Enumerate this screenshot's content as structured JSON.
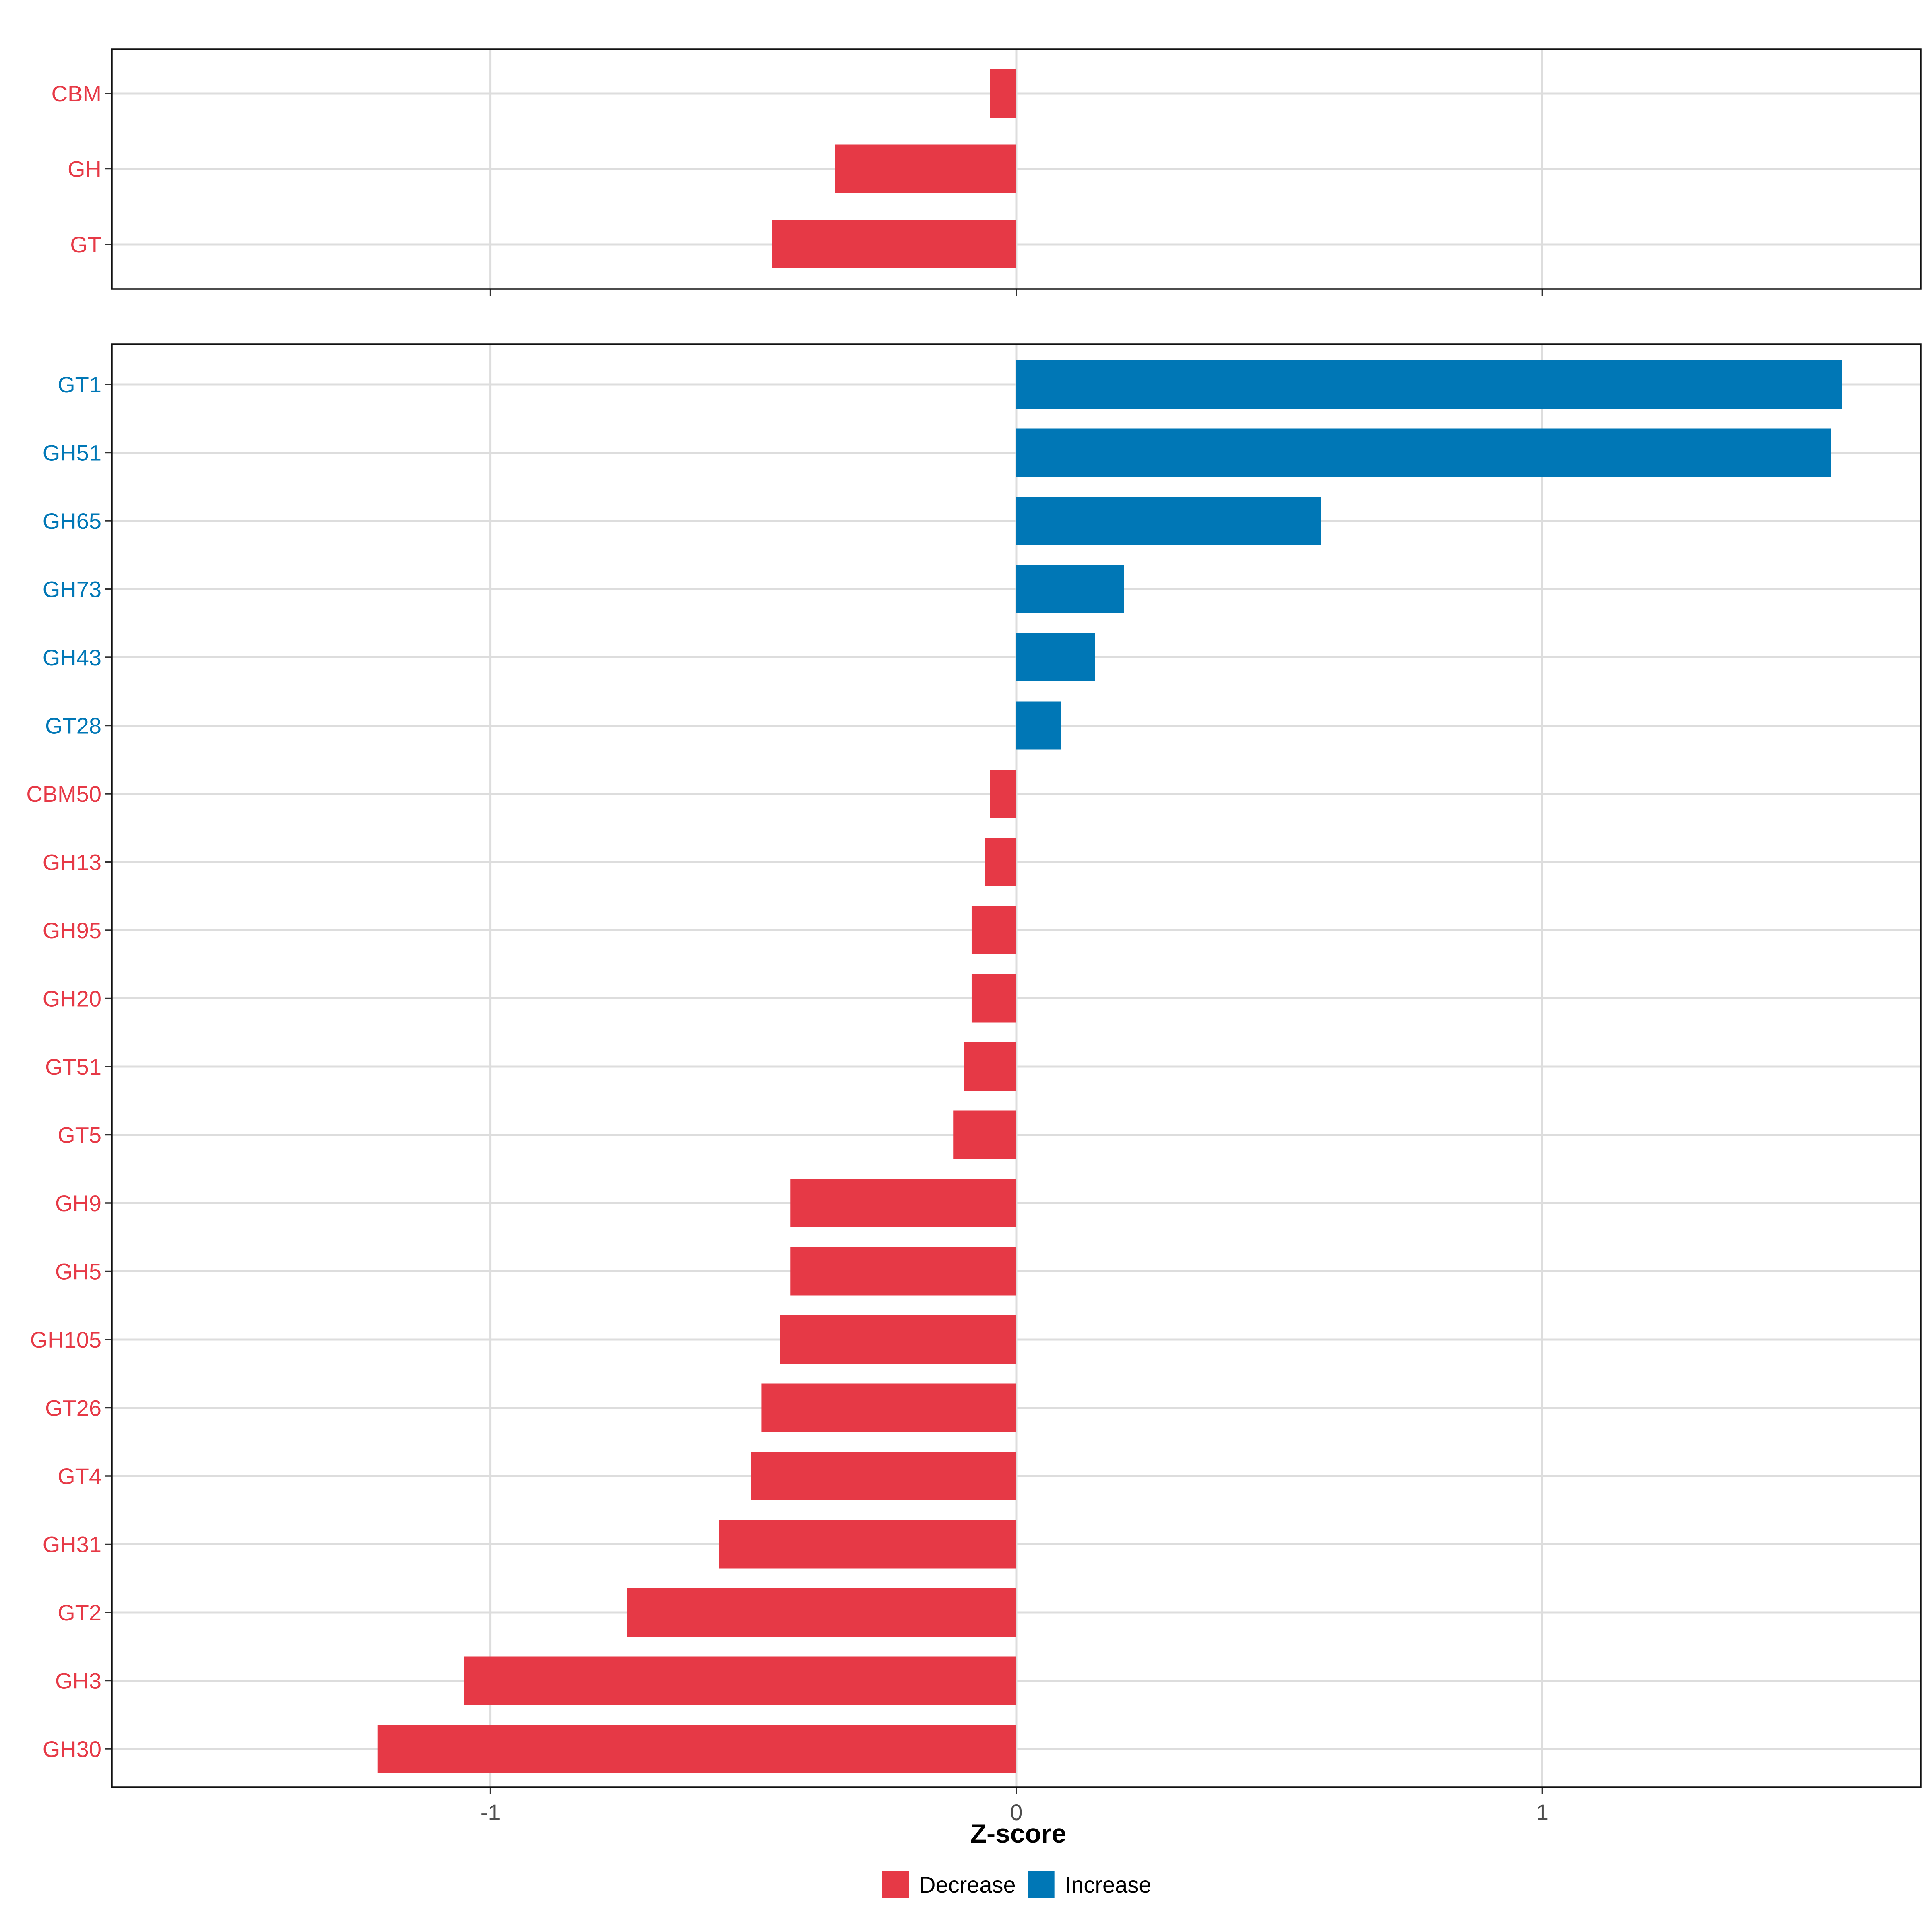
{
  "chart_data": {
    "type": "bar",
    "orientation": "horizontal",
    "xlabel": "Z-score",
    "xlim": [
      -1.72,
      1.72
    ],
    "xticks": [
      {
        "value": -1,
        "label": "-1"
      },
      {
        "value": 0,
        "label": "0"
      },
      {
        "value": 1,
        "label": "1"
      }
    ],
    "grid": true,
    "legend": {
      "position": "bottom",
      "entries": [
        {
          "key": "Decrease",
          "label": "Decrease",
          "color": "#e63946"
        },
        {
          "key": "Increase",
          "label": "Increase",
          "color": "#0077b6"
        }
      ]
    },
    "panels": [
      {
        "name": "top",
        "bars": [
          {
            "label": "CBM",
            "value": -0.05,
            "group": "Decrease"
          },
          {
            "label": "GH",
            "value": -0.345,
            "group": "Decrease"
          },
          {
            "label": "GT",
            "value": -0.465,
            "group": "Decrease"
          }
        ]
      },
      {
        "name": "bottom",
        "bars": [
          {
            "label": "GT1",
            "value": 1.57,
            "group": "Increase"
          },
          {
            "label": "GH51",
            "value": 1.55,
            "group": "Increase"
          },
          {
            "label": "GH65",
            "value": 0.58,
            "group": "Increase"
          },
          {
            "label": "GH73",
            "value": 0.205,
            "group": "Increase"
          },
          {
            "label": "GH43",
            "value": 0.15,
            "group": "Increase"
          },
          {
            "label": "GT28",
            "value": 0.085,
            "group": "Increase"
          },
          {
            "label": "CBM50",
            "value": -0.05,
            "group": "Decrease"
          },
          {
            "label": "GH13",
            "value": -0.06,
            "group": "Decrease"
          },
          {
            "label": "GH95",
            "value": -0.085,
            "group": "Decrease"
          },
          {
            "label": "GH20",
            "value": -0.085,
            "group": "Decrease"
          },
          {
            "label": "GT51",
            "value": -0.1,
            "group": "Decrease"
          },
          {
            "label": "GT5",
            "value": -0.12,
            "group": "Decrease"
          },
          {
            "label": "GH9",
            "value": -0.43,
            "group": "Decrease"
          },
          {
            "label": "GH5",
            "value": -0.43,
            "group": "Decrease"
          },
          {
            "label": "GH105",
            "value": -0.45,
            "group": "Decrease"
          },
          {
            "label": "GT26",
            "value": -0.485,
            "group": "Decrease"
          },
          {
            "label": "GT4",
            "value": -0.505,
            "group": "Decrease"
          },
          {
            "label": "GH31",
            "value": -0.565,
            "group": "Decrease"
          },
          {
            "label": "GT2",
            "value": -0.74,
            "group": "Decrease"
          },
          {
            "label": "GH3",
            "value": -1.05,
            "group": "Decrease"
          },
          {
            "label": "GH30",
            "value": -1.215,
            "group": "Decrease"
          }
        ]
      }
    ]
  }
}
